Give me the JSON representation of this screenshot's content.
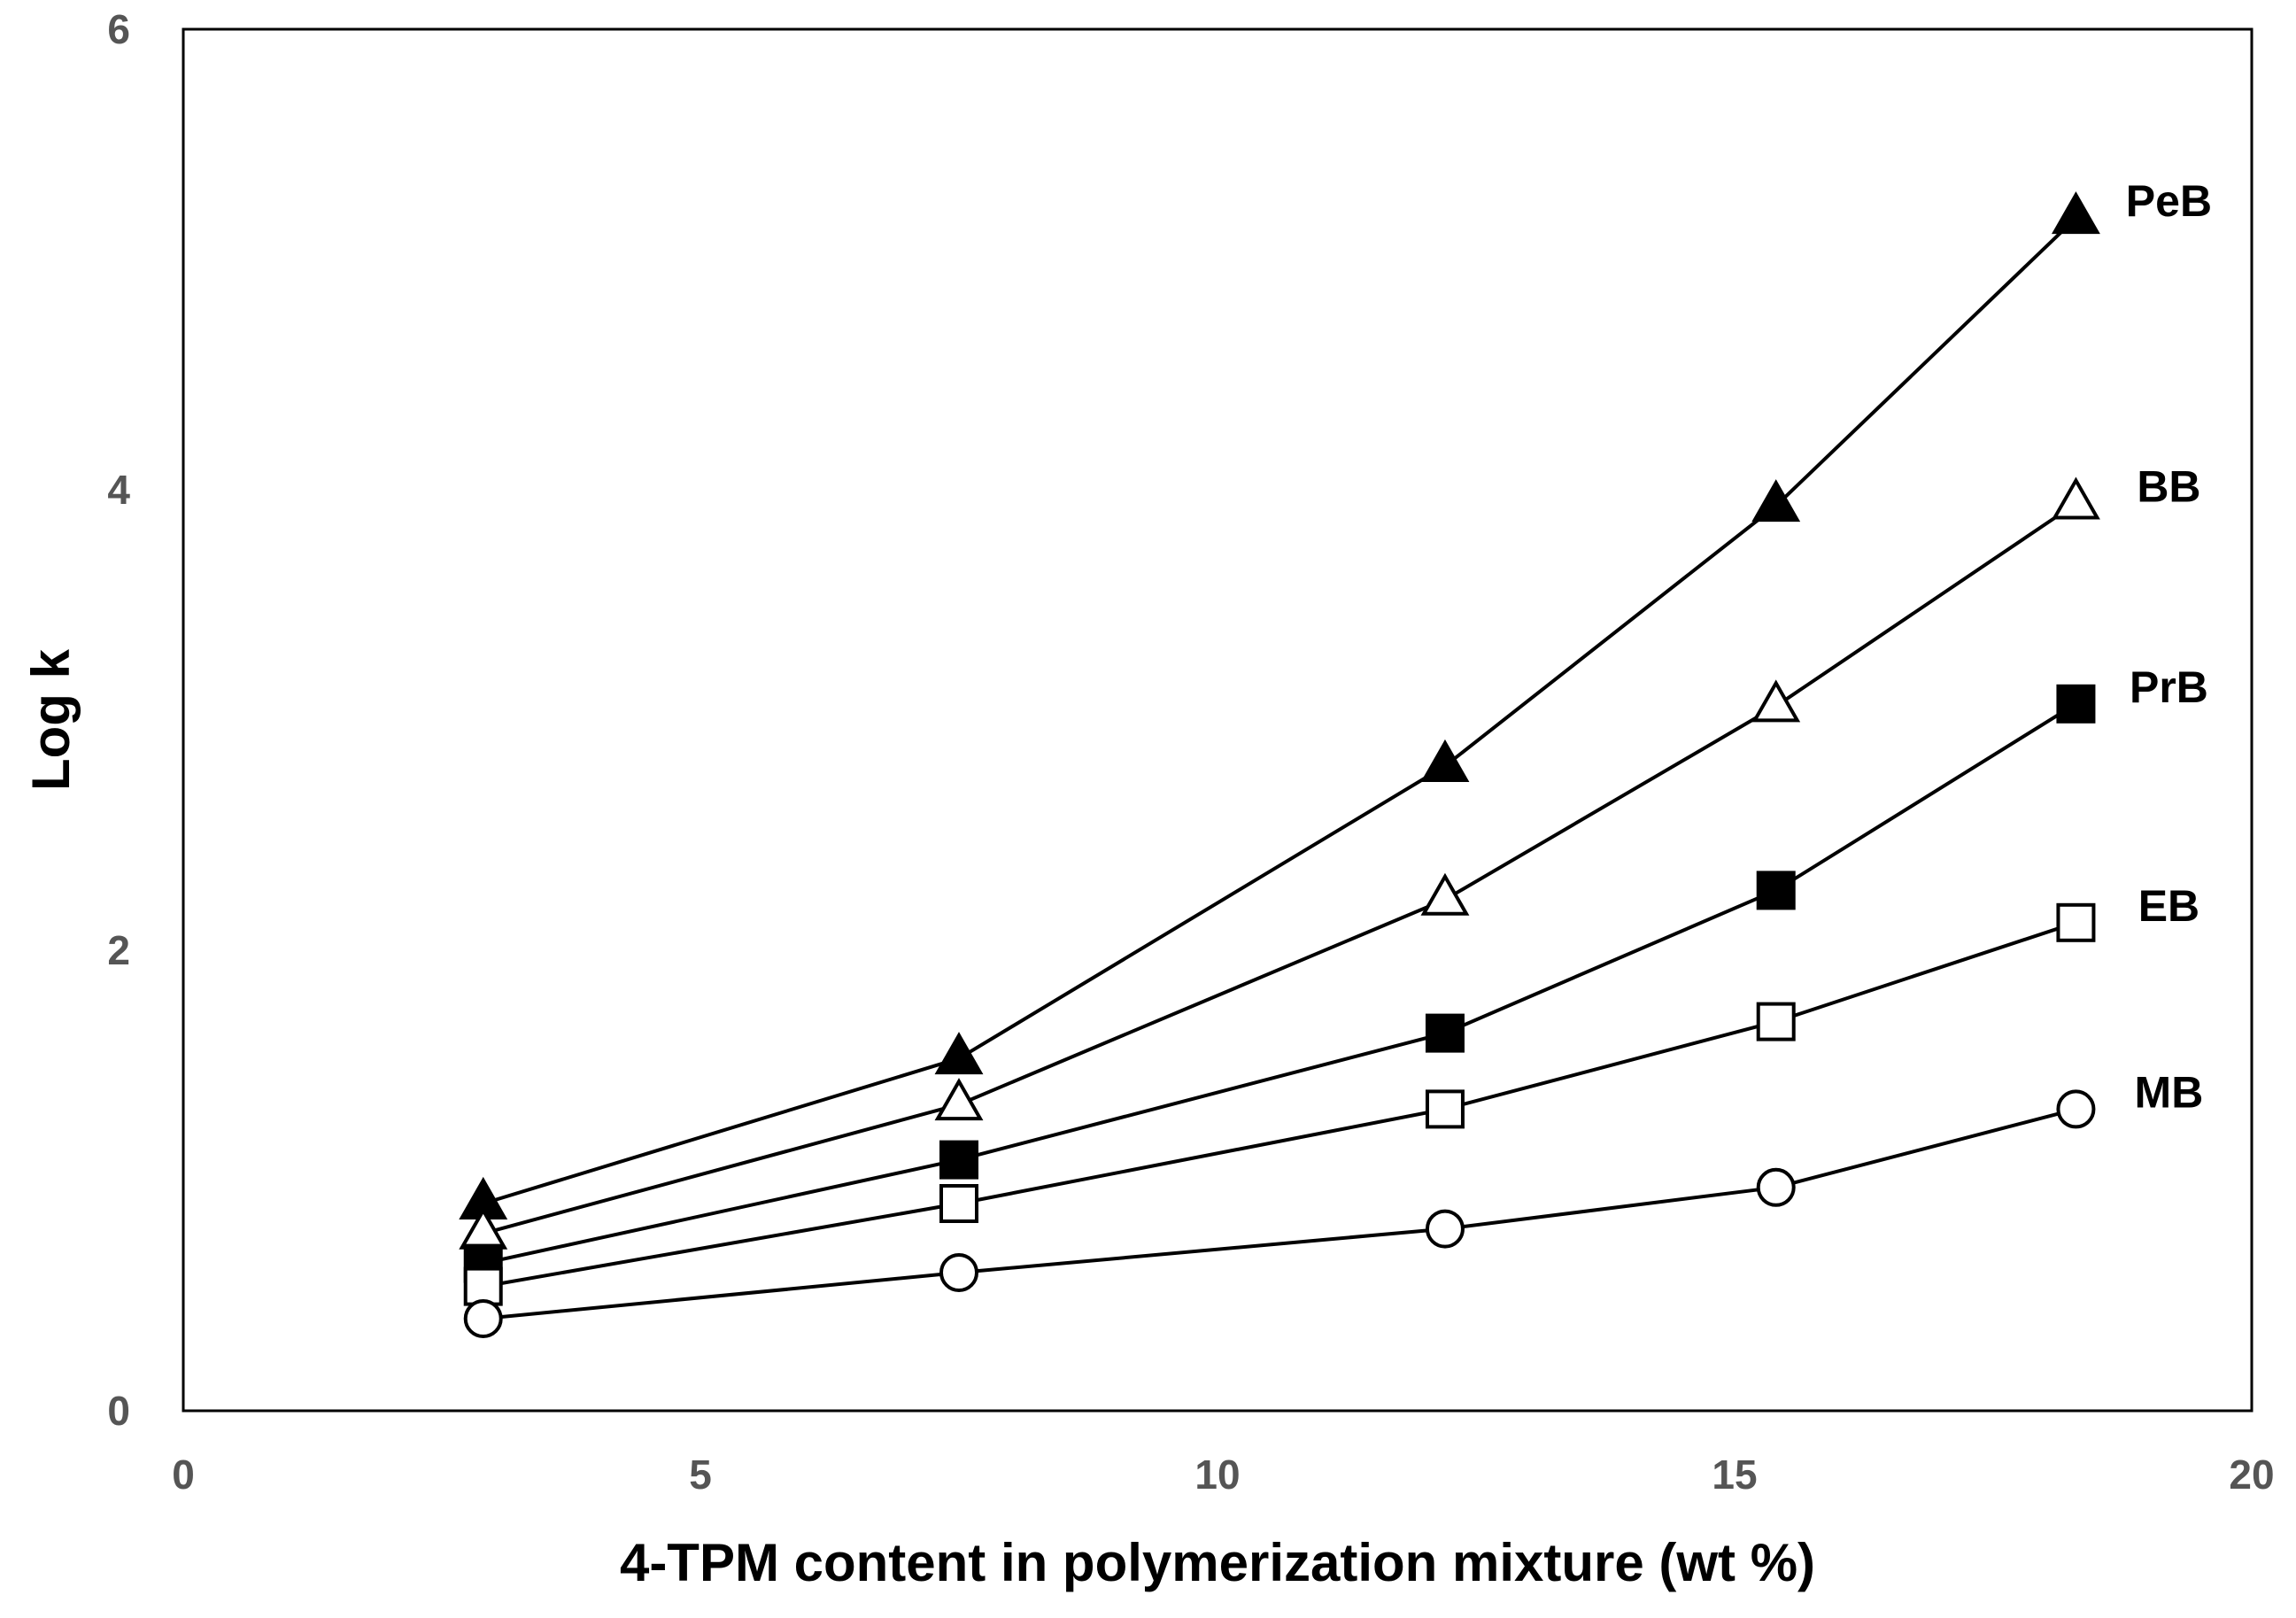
{
  "chart_data": {
    "type": "line",
    "title": "",
    "xlabel": "4-TPM content in polymerization mixture (wt %)",
    "ylabel": "Log k",
    "xlim": [
      0,
      20
    ],
    "ylim": [
      0,
      6
    ],
    "xticks": [
      "0",
      "5",
      "10",
      "15",
      "20"
    ],
    "yticks": [
      "0",
      "2",
      "4",
      "6"
    ],
    "grid": false,
    "legend": "none; series names printed at the right end of each line",
    "x": [
      2.9,
      7.5,
      12.2,
      15.4,
      18.3
    ],
    "series": [
      {
        "name": "PeB",
        "marker": "filled-triangle",
        "values": [
          0.9,
          1.53,
          2.8,
          3.93,
          5.18
        ]
      },
      {
        "name": "BB",
        "marker": "open-triangle",
        "values": [
          0.77,
          1.33,
          2.22,
          3.06,
          3.94
        ]
      },
      {
        "name": "PrB",
        "marker": "filled-square",
        "values": [
          0.64,
          1.09,
          1.64,
          2.26,
          3.07
        ]
      },
      {
        "name": "EB",
        "marker": "open-square",
        "values": [
          0.54,
          0.9,
          1.31,
          1.69,
          2.12
        ]
      },
      {
        "name": "MB",
        "marker": "open-circle",
        "values": [
          0.4,
          0.6,
          0.79,
          0.97,
          1.31
        ]
      }
    ],
    "colors": {
      "line": "#000000",
      "axis": "#000000",
      "tick_label": "#555555"
    }
  }
}
